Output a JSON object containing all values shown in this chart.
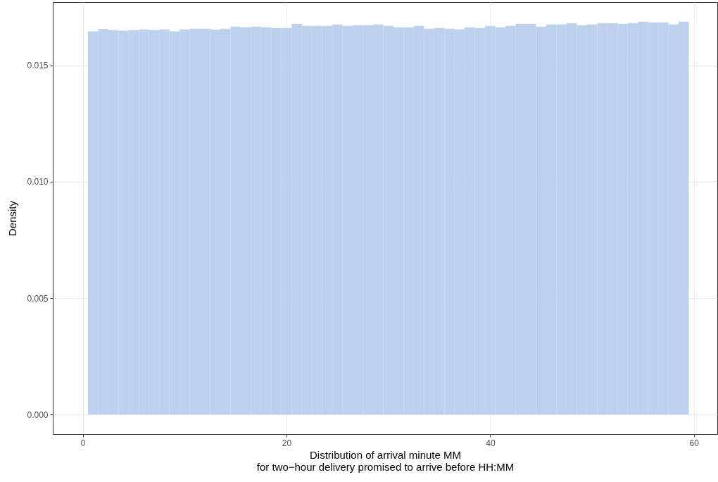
{
  "chart_data": {
    "type": "histogram",
    "xlabel": "Distribution of arrival minute MM\nfor two−hour delivery promised to arrive before HH:MM",
    "ylabel": "Density",
    "bins": [
      0.5,
      1.5,
      2.5,
      3.5,
      4.5,
      5.5,
      6.5,
      7.5,
      8.5,
      9.5,
      10.5,
      11.5,
      12.5,
      13.5,
      14.5,
      15.5,
      16.5,
      17.5,
      18.5,
      19.5,
      20.5,
      21.5,
      22.5,
      23.5,
      24.5,
      25.5,
      26.5,
      27.5,
      28.5,
      29.5,
      30.5,
      31.5,
      32.5,
      33.5,
      34.5,
      35.5,
      36.5,
      37.5,
      38.5,
      39.5,
      40.5,
      41.5,
      42.5,
      43.5,
      44.5,
      45.5,
      46.5,
      47.5,
      48.5,
      49.5,
      50.5,
      51.5,
      52.5,
      53.5,
      54.5,
      55.5,
      56.5,
      57.5,
      58.5,
      59.5
    ],
    "values": [
      0.01646,
      0.01657,
      0.01652,
      0.01649,
      0.01652,
      0.01655,
      0.01652,
      0.01655,
      0.01646,
      0.01655,
      0.01658,
      0.01658,
      0.01654,
      0.01658,
      0.01667,
      0.01664,
      0.01667,
      0.01664,
      0.01661,
      0.01661,
      0.01679,
      0.0167,
      0.0167,
      0.0167,
      0.01676,
      0.0167,
      0.01673,
      0.01673,
      0.01676,
      0.0167,
      0.01664,
      0.01664,
      0.0167,
      0.01658,
      0.01661,
      0.01658,
      0.01655,
      0.01664,
      0.01661,
      0.0167,
      0.01664,
      0.0167,
      0.01679,
      0.01679,
      0.01667,
      0.01676,
      0.01676,
      0.01682,
      0.01673,
      0.01676,
      0.01682,
      0.01682,
      0.01679,
      0.01682,
      0.01688,
      0.01685,
      0.01685,
      0.01676,
      0.01688
    ],
    "color": "#bdd1ee",
    "xlim": [
      -2.95,
      62.3
    ],
    "ylim": [
      -0.00084,
      0.01772
    ],
    "xticks": [
      0,
      20,
      40,
      60
    ],
    "yticks": [
      {
        "value": 0,
        "label": "0.000"
      },
      {
        "value": 0.005,
        "label": "0.005"
      },
      {
        "value": 0.01,
        "label": "0.010"
      },
      {
        "value": 0.015,
        "label": "0.015"
      }
    ],
    "grid": true
  }
}
